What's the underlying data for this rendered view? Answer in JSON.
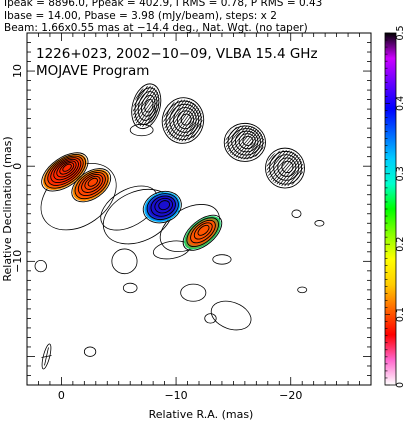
{
  "header": {
    "line1": "Ipeak = 8896.0, Ppeak = 402.9, I RMS = 0.78, P RMS = 0.43",
    "line2": "Ibase = 14.00, Pbase = 3.98 (mJy/beam), steps: x 2",
    "line3": "Beam: 1.66x0.55 mas at −14.4 deg., Nat. Wgt. (no taper)"
  },
  "chart_data": {
    "type": "heatmap",
    "title": "1226+023, 2002−10−09, VLBA 15.4 GHz",
    "subtitle": "MOJAVE Program",
    "xlabel": "Relative R.A. (mas)",
    "ylabel": "Relative Declination (mas)",
    "xlim": [
      3,
      -27
    ],
    "ylim": [
      -23,
      14
    ],
    "x_ticks": [
      {
        "value": 0,
        "label": "0"
      },
      {
        "value": -10,
        "label": "−10"
      },
      {
        "value": -20,
        "label": "−20"
      }
    ],
    "y_ticks": [
      {
        "value": 10,
        "label": "10"
      },
      {
        "value": 0,
        "label": "0"
      },
      {
        "value": -10,
        "label": "−10"
      }
    ],
    "colorbar": {
      "range": [
        0,
        0.5
      ],
      "ticks": [
        {
          "value": 0,
          "label": "0"
        },
        {
          "value": 0.1,
          "label": "0.1"
        },
        {
          "value": 0.2,
          "label": "0.2"
        },
        {
          "value": 0.3,
          "label": "0.3"
        },
        {
          "value": 0.4,
          "label": "0.4"
        },
        {
          "value": 0.5,
          "label": "0.5"
        }
      ],
      "colors": [
        "#ffffff",
        "#ff66cc",
        "#ff0000",
        "#ff6600",
        "#ffcc00",
        "#ffff00",
        "#88ff00",
        "#00ff00",
        "#00ffcc",
        "#00ccff",
        "#0066ff",
        "#0000ff",
        "#6600ff",
        "#cc00ff",
        "#000000"
      ]
    },
    "beam": {
      "major_mas": 1.66,
      "minor_mas": 0.55,
      "pa_deg": -14.4,
      "x": 1.3,
      "y": -20
    },
    "components": [
      {
        "name": "core",
        "x": -0.3,
        "y": -0.6,
        "a": 2.3,
        "b": 1.5,
        "rot": 35,
        "levels": 8,
        "fill": "#ff2a00",
        "edge": "#ff9900"
      },
      {
        "name": "inner-jet",
        "x": -2.6,
        "y": -2.0,
        "a": 1.9,
        "b": 1.4,
        "rot": 35,
        "levels": 6,
        "fill": "#ff4400",
        "edge": "#ff9900"
      },
      {
        "name": "knot-a",
        "x": -8.8,
        "y": -4.3,
        "a": 1.7,
        "b": 1.6,
        "rot": 20,
        "levels": 5,
        "fill": "#1a0fd0",
        "edge": "#00c8ff"
      },
      {
        "name": "knot-b",
        "x": -12.3,
        "y": -7.0,
        "a": 2.0,
        "b": 1.3,
        "rot": 40,
        "levels": 5,
        "fill": "#ff5500",
        "edge": "#00e070"
      },
      {
        "name": "upper-blob-1",
        "x": -7.4,
        "y": 6.3,
        "a": 1.2,
        "b": 2.4,
        "rot": -15,
        "levels": 5,
        "fill": "none",
        "edge": "none"
      },
      {
        "name": "upper-blob-2",
        "x": -10.6,
        "y": 4.8,
        "a": 1.8,
        "b": 2.4,
        "rot": -10,
        "levels": 6,
        "fill": "none",
        "edge": "none"
      },
      {
        "name": "upper-blob-3",
        "x": -16.0,
        "y": 2.5,
        "a": 1.8,
        "b": 2.0,
        "rot": 0,
        "levels": 6,
        "fill": "none",
        "edge": "none"
      },
      {
        "name": "upper-blob-4",
        "x": -19.5,
        "y": -0.2,
        "a": 1.7,
        "b": 2.1,
        "rot": 0,
        "levels": 5,
        "fill": "none",
        "edge": "none"
      }
    ],
    "faint_contours": [
      {
        "x": -1.5,
        "y": -3.2,
        "a": 3.6,
        "b": 3.0,
        "rot": 35
      },
      {
        "x": -6.7,
        "y": -5.3,
        "a": 3.2,
        "b": 2.6,
        "rot": 25
      },
      {
        "x": -5.9,
        "y": -4.4,
        "a": 2.7,
        "b": 1.9,
        "rot": 30
      },
      {
        "x": -11.2,
        "y": -6.5,
        "a": 2.8,
        "b": 2.1,
        "rot": 30
      },
      {
        "x": -9.6,
        "y": -8.8,
        "a": 1.6,
        "b": 0.9,
        "rot": 10
      },
      {
        "x": -5.5,
        "y": -10.0,
        "a": 1.1,
        "b": 1.3,
        "rot": 0
      },
      {
        "x": -6.0,
        "y": -12.8,
        "a": 0.6,
        "b": 0.5,
        "rot": 0
      },
      {
        "x": -11.5,
        "y": -13.3,
        "a": 1.1,
        "b": 0.9,
        "rot": 0
      },
      {
        "x": -13.0,
        "y": -16.0,
        "a": 0.5,
        "b": 0.5,
        "rot": 0
      },
      {
        "x": -14.8,
        "y": -15.7,
        "a": 1.8,
        "b": 1.4,
        "rot": -20
      },
      {
        "x": -21.0,
        "y": -13.0,
        "a": 0.4,
        "b": 0.3,
        "rot": 0
      },
      {
        "x": 1.8,
        "y": -10.5,
        "a": 0.5,
        "b": 0.6,
        "rot": 0
      },
      {
        "x": -2.5,
        "y": -19.5,
        "a": 0.5,
        "b": 0.5,
        "rot": 0
      },
      {
        "x": -14.0,
        "y": -9.8,
        "a": 0.8,
        "b": 0.5,
        "rot": 0
      },
      {
        "x": -7.0,
        "y": 3.8,
        "a": 1.0,
        "b": 0.6,
        "rot": 0
      },
      {
        "x": -20.5,
        "y": -5.0,
        "a": 0.4,
        "b": 0.4,
        "rot": 0
      },
      {
        "x": -22.5,
        "y": -6.0,
        "a": 0.4,
        "b": 0.3,
        "rot": 0
      }
    ],
    "evpa_hatch": [
      {
        "x": -7.4,
        "y": 6.3,
        "rx": 1.1,
        "ry": 2.2,
        "rot": -15,
        "angle": 55
      },
      {
        "x": -10.6,
        "y": 4.8,
        "rx": 1.7,
        "ry": 2.2,
        "rot": -10,
        "angle": 55
      },
      {
        "x": -16.0,
        "y": 2.5,
        "rx": 1.7,
        "ry": 1.8,
        "rot": 0,
        "angle": 50
      },
      {
        "x": -19.5,
        "y": -0.2,
        "rx": 1.6,
        "ry": 1.9,
        "rot": 0,
        "angle": 50
      }
    ]
  }
}
